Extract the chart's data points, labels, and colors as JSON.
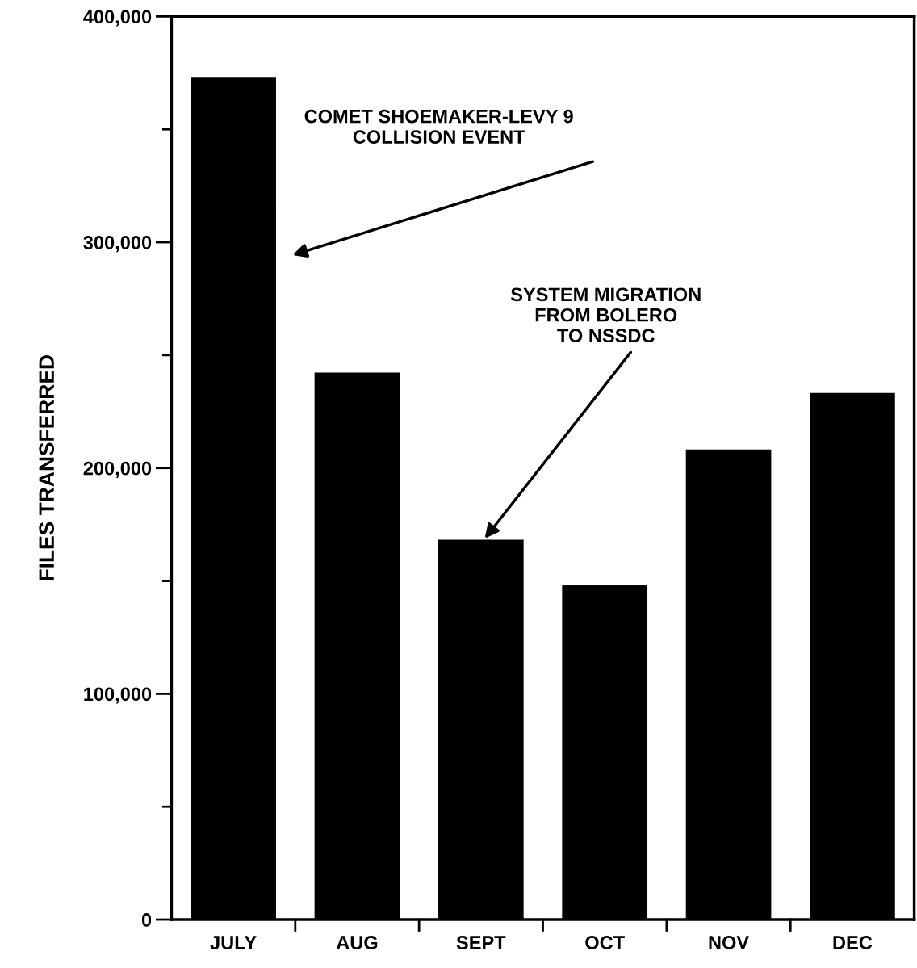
{
  "chart_data": {
    "type": "bar",
    "ylabel": "FILES TRANSFERRED",
    "categories": [
      "JULY",
      "AUG",
      "SEPT",
      "OCT",
      "NOV",
      "DEC"
    ],
    "values": [
      373000,
      242000,
      168000,
      148000,
      208000,
      233000
    ],
    "color": "#000000",
    "ylim": [
      0,
      400000
    ],
    "yticks": [
      {
        "value": 0,
        "label": "0"
      },
      {
        "value": 50000,
        "label": null
      },
      {
        "value": 100000,
        "label": "100,000"
      },
      {
        "value": 150000,
        "label": null
      },
      {
        "value": 200000,
        "label": "200,000"
      },
      {
        "value": 250000,
        "label": null
      },
      {
        "value": 300000,
        "label": "300,000"
      },
      {
        "value": 350000,
        "label": null
      },
      {
        "value": 400000,
        "label": "400,000"
      }
    ],
    "grid": false,
    "annotations": [
      "COMET SHOEMAKER-LEVY 9\nCOLLISION EVENT",
      "SYSTEM MIGRATION\nFROM BOLERO\nTO NSSDC"
    ]
  }
}
